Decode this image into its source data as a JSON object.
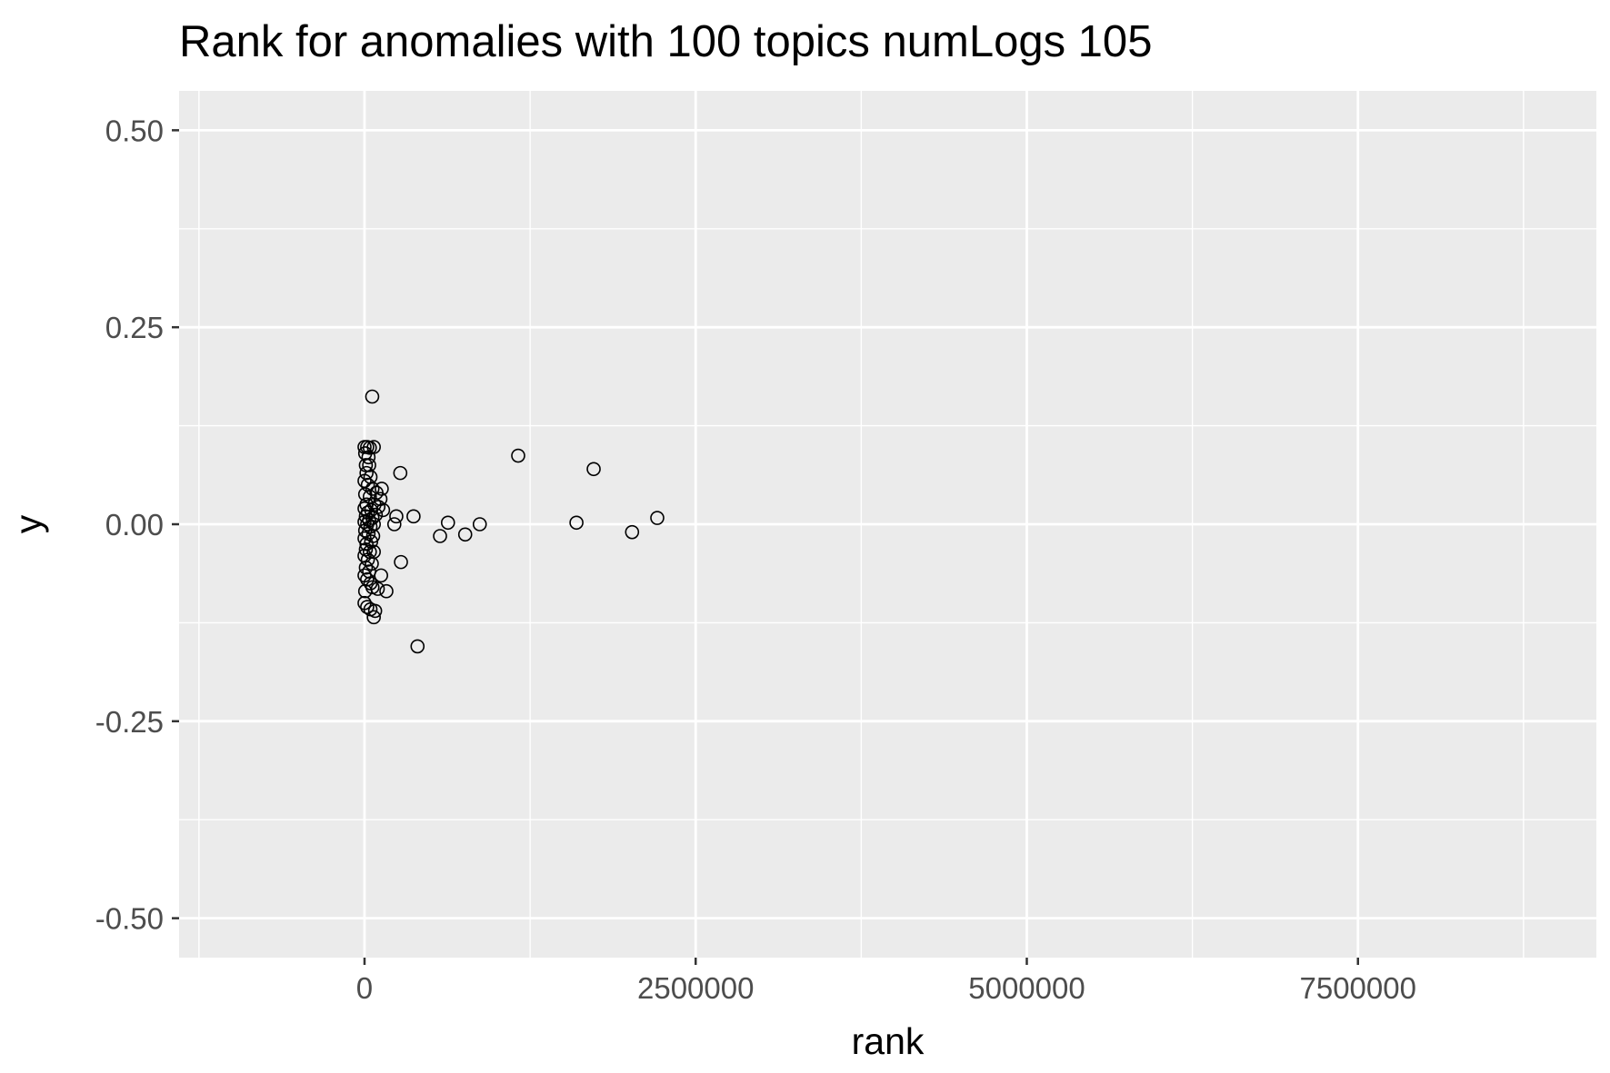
{
  "chart_data": {
    "type": "scatter",
    "title": "Rank for anomalies with 100 topics numLogs 105",
    "xlabel": "rank",
    "ylabel": "y",
    "xlim": [
      -1400000,
      9300000
    ],
    "ylim": [
      -0.55,
      0.55
    ],
    "x_ticks": [
      {
        "value": 0,
        "label": "0"
      },
      {
        "value": 2500000,
        "label": "2500000"
      },
      {
        "value": 5000000,
        "label": "5000000"
      },
      {
        "value": 7500000,
        "label": "7500000"
      }
    ],
    "y_ticks": [
      {
        "value": 0.5,
        "label": "0.50"
      },
      {
        "value": 0.25,
        "label": "0.25"
      },
      {
        "value": 0.0,
        "label": "0.00"
      },
      {
        "value": -0.25,
        "label": "-0.25"
      },
      {
        "value": -0.5,
        "label": "-0.50"
      }
    ],
    "grid": true,
    "panel_background": "#ebebeb",
    "grid_color": "#ffffff",
    "point_style": "open-circle",
    "point_color": "#000000",
    "points": [
      {
        "x": 58000,
        "y": 0.162
      },
      {
        "x": 0,
        "y": 0.098
      },
      {
        "x": 20000,
        "y": 0.098
      },
      {
        "x": 40000,
        "y": 0.097
      },
      {
        "x": 70000,
        "y": 0.098
      },
      {
        "x": 5000,
        "y": 0.09
      },
      {
        "x": 30000,
        "y": 0.085
      },
      {
        "x": 10000,
        "y": 0.075
      },
      {
        "x": 35000,
        "y": 0.075
      },
      {
        "x": 15000,
        "y": 0.065
      },
      {
        "x": 45000,
        "y": 0.06
      },
      {
        "x": 0,
        "y": 0.055
      },
      {
        "x": 25000,
        "y": 0.05
      },
      {
        "x": 60000,
        "y": 0.045
      },
      {
        "x": 130000,
        "y": 0.045
      },
      {
        "x": 90000,
        "y": 0.04
      },
      {
        "x": 5000,
        "y": 0.038
      },
      {
        "x": 40000,
        "y": 0.035
      },
      {
        "x": 120000,
        "y": 0.032
      },
      {
        "x": 15000,
        "y": 0.025
      },
      {
        "x": 75000,
        "y": 0.025
      },
      {
        "x": 105000,
        "y": 0.022
      },
      {
        "x": 0,
        "y": 0.02
      },
      {
        "x": 50000,
        "y": 0.018
      },
      {
        "x": 140000,
        "y": 0.018
      },
      {
        "x": 25000,
        "y": 0.015
      },
      {
        "x": 85000,
        "y": 0.012
      },
      {
        "x": 10000,
        "y": 0.01
      },
      {
        "x": 60000,
        "y": 0.008
      },
      {
        "x": 35000,
        "y": 0.005
      },
      {
        "x": 0,
        "y": 0.003
      },
      {
        "x": 20000,
        "y": 0.0
      },
      {
        "x": 70000,
        "y": 0.0
      },
      {
        "x": 45000,
        "y": -0.003
      },
      {
        "x": 5000,
        "y": -0.008
      },
      {
        "x": 30000,
        "y": -0.012
      },
      {
        "x": 65000,
        "y": -0.015
      },
      {
        "x": 0,
        "y": -0.018
      },
      {
        "x": 50000,
        "y": -0.022
      },
      {
        "x": 15000,
        "y": -0.025
      },
      {
        "x": 10000,
        "y": -0.032
      },
      {
        "x": 40000,
        "y": -0.035
      },
      {
        "x": 70000,
        "y": -0.035
      },
      {
        "x": 0,
        "y": -0.04
      },
      {
        "x": 25000,
        "y": -0.045
      },
      {
        "x": 55000,
        "y": -0.05
      },
      {
        "x": 10000,
        "y": -0.055
      },
      {
        "x": 35000,
        "y": -0.06
      },
      {
        "x": 0,
        "y": -0.065
      },
      {
        "x": 20000,
        "y": -0.07
      },
      {
        "x": 45000,
        "y": -0.075
      },
      {
        "x": 125000,
        "y": -0.065
      },
      {
        "x": 60000,
        "y": -0.08
      },
      {
        "x": 100000,
        "y": -0.082
      },
      {
        "x": 5000,
        "y": -0.085
      },
      {
        "x": 165000,
        "y": -0.085
      },
      {
        "x": 0,
        "y": -0.1
      },
      {
        "x": 20000,
        "y": -0.105
      },
      {
        "x": 45000,
        "y": -0.108
      },
      {
        "x": 80000,
        "y": -0.11
      },
      {
        "x": 70000,
        "y": -0.118
      },
      {
        "x": 240000,
        "y": 0.01
      },
      {
        "x": 270000,
        "y": 0.065
      },
      {
        "x": 225000,
        "y": 0.0
      },
      {
        "x": 275000,
        "y": -0.048
      },
      {
        "x": 370000,
        "y": 0.01
      },
      {
        "x": 400000,
        "y": -0.155
      },
      {
        "x": 570000,
        "y": -0.015
      },
      {
        "x": 630000,
        "y": 0.002
      },
      {
        "x": 760000,
        "y": -0.013
      },
      {
        "x": 870000,
        "y": 0.0
      },
      {
        "x": 1160000,
        "y": 0.087
      },
      {
        "x": 1600000,
        "y": 0.002
      },
      {
        "x": 1730000,
        "y": 0.07
      },
      {
        "x": 2020000,
        "y": -0.01
      },
      {
        "x": 2210000,
        "y": 0.008
      }
    ]
  }
}
